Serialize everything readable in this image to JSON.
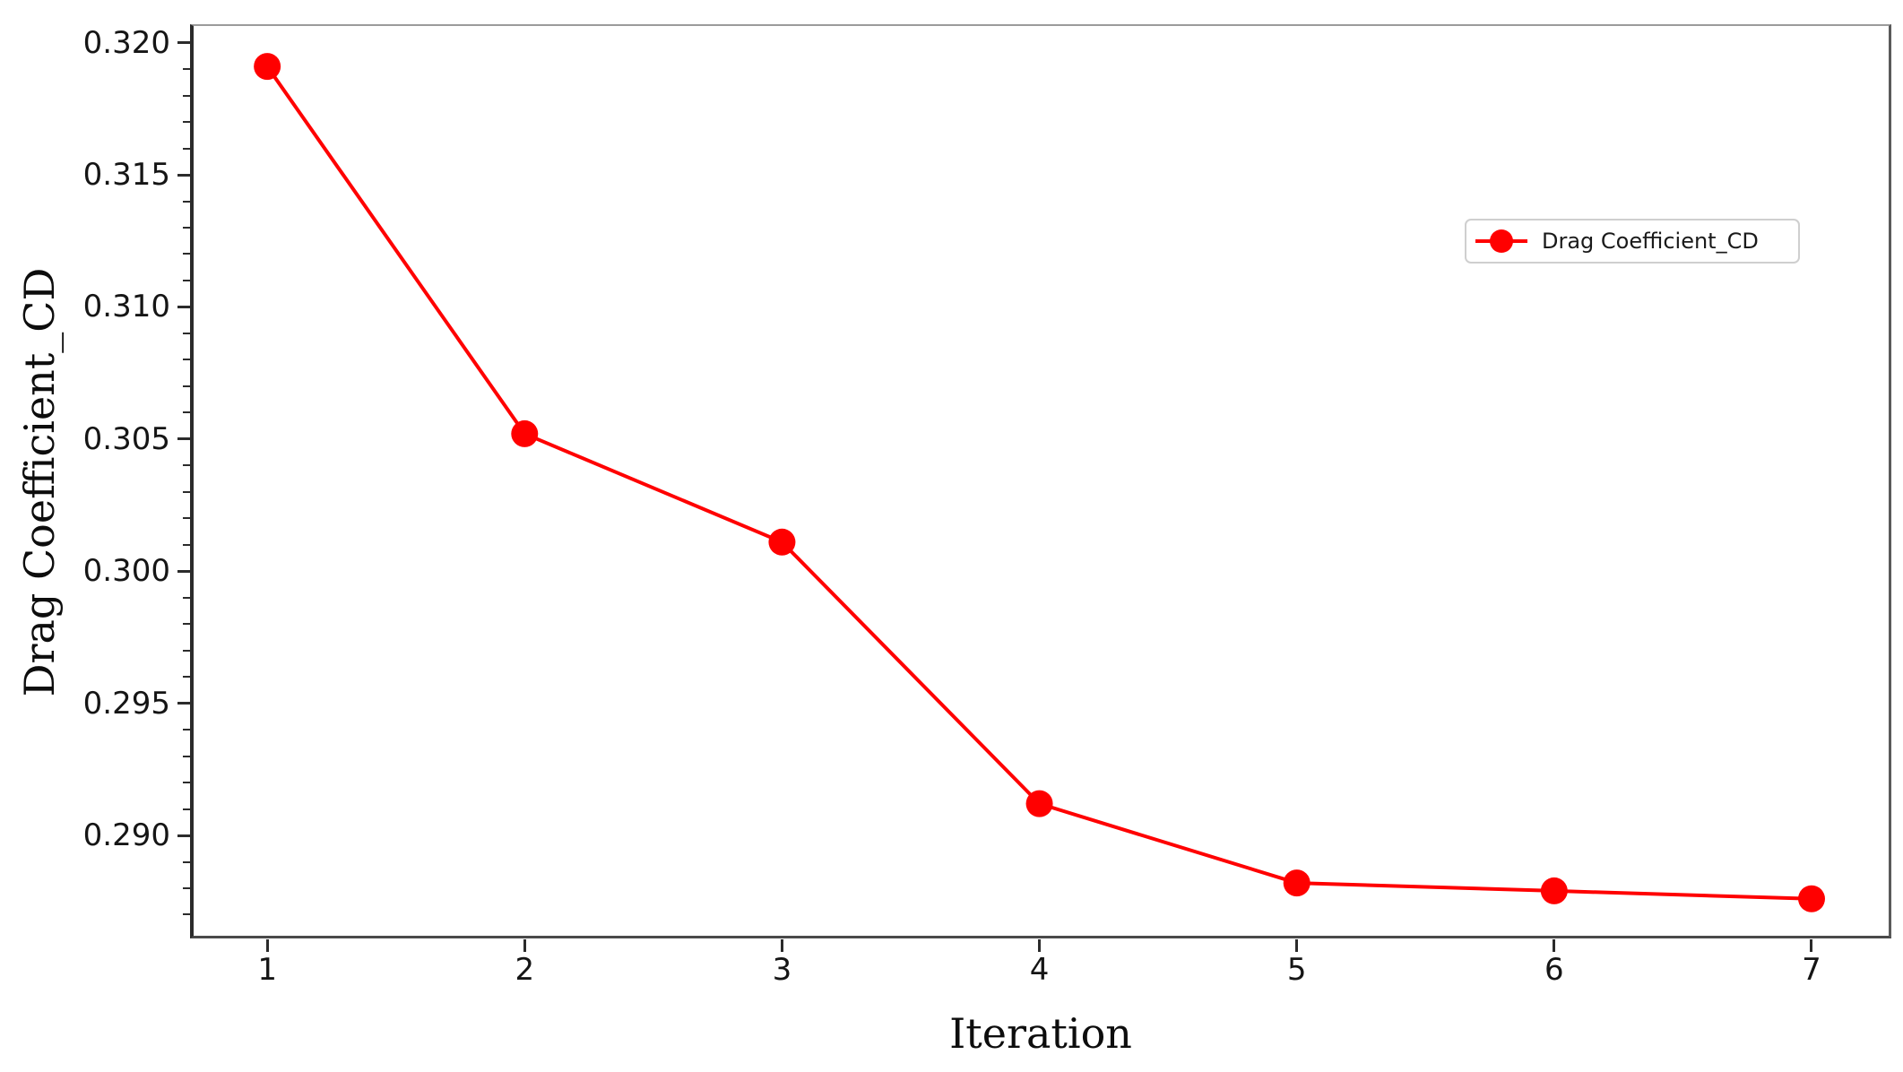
{
  "figure": {
    "background": "#ffffff"
  },
  "chart_data": {
    "type": "line",
    "title": "",
    "xlabel": "Iteration",
    "ylabel": "Drag Coefficient_CD",
    "series": [
      {
        "name": "Drag Coefficient_CD",
        "color": "#ff0000",
        "marker": "circle",
        "line_width": 4,
        "marker_radius": 15,
        "x": [
          1,
          2,
          3,
          4,
          5,
          6,
          7
        ],
        "y": [
          0.3191,
          0.3052,
          0.3011,
          0.2912,
          0.2882,
          0.2879,
          0.2876
        ]
      }
    ],
    "xlim": [
      0.7,
      7.31
    ],
    "ylim": [
      0.2861,
      0.3207
    ],
    "x_ticks": [
      1,
      2,
      3,
      4,
      5,
      6,
      7
    ],
    "x_tick_labels": [
      "1",
      "2",
      "3",
      "4",
      "5",
      "6",
      "7"
    ],
    "y_ticks": [
      0.32,
      0.315,
      0.31,
      0.305,
      0.3,
      0.295,
      0.29
    ],
    "y_tick_labels": [
      "0.320",
      "0.315",
      "0.310",
      "0.305",
      "0.300",
      "0.295",
      "0.290"
    ],
    "y_minor_step": 0.001,
    "grid": false,
    "legend": {
      "position": "upper right",
      "entries": [
        "Drag Coefficient_CD"
      ],
      "border_color": "#cfcfcf"
    }
  }
}
